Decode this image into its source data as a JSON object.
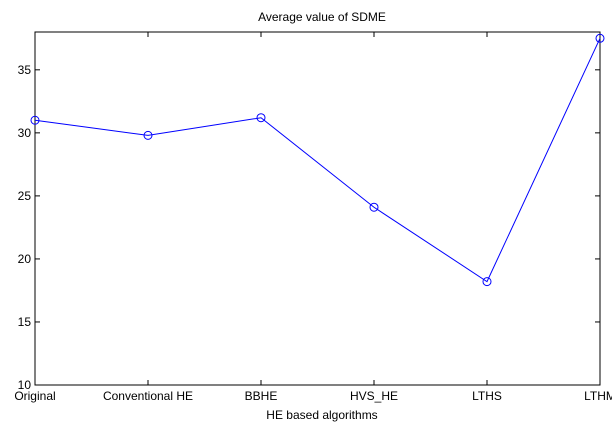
{
  "chart_data": {
    "type": "line",
    "title": "Average value of SDME",
    "xlabel": "HE based algorithms",
    "ylabel": "",
    "categories": [
      "Original",
      "Conventional HE",
      "BBHE",
      "HVS_HE",
      "LTHS",
      "LTHM"
    ],
    "series": [
      {
        "values": [
          31.0,
          29.8,
          31.2,
          24.1,
          18.2,
          37.5
        ]
      }
    ],
    "ylim": [
      10,
      38
    ],
    "yticks": [
      10,
      15,
      20,
      25,
      30,
      35
    ],
    "grid": false,
    "marker": "circle",
    "line_color": "#0000ff"
  }
}
